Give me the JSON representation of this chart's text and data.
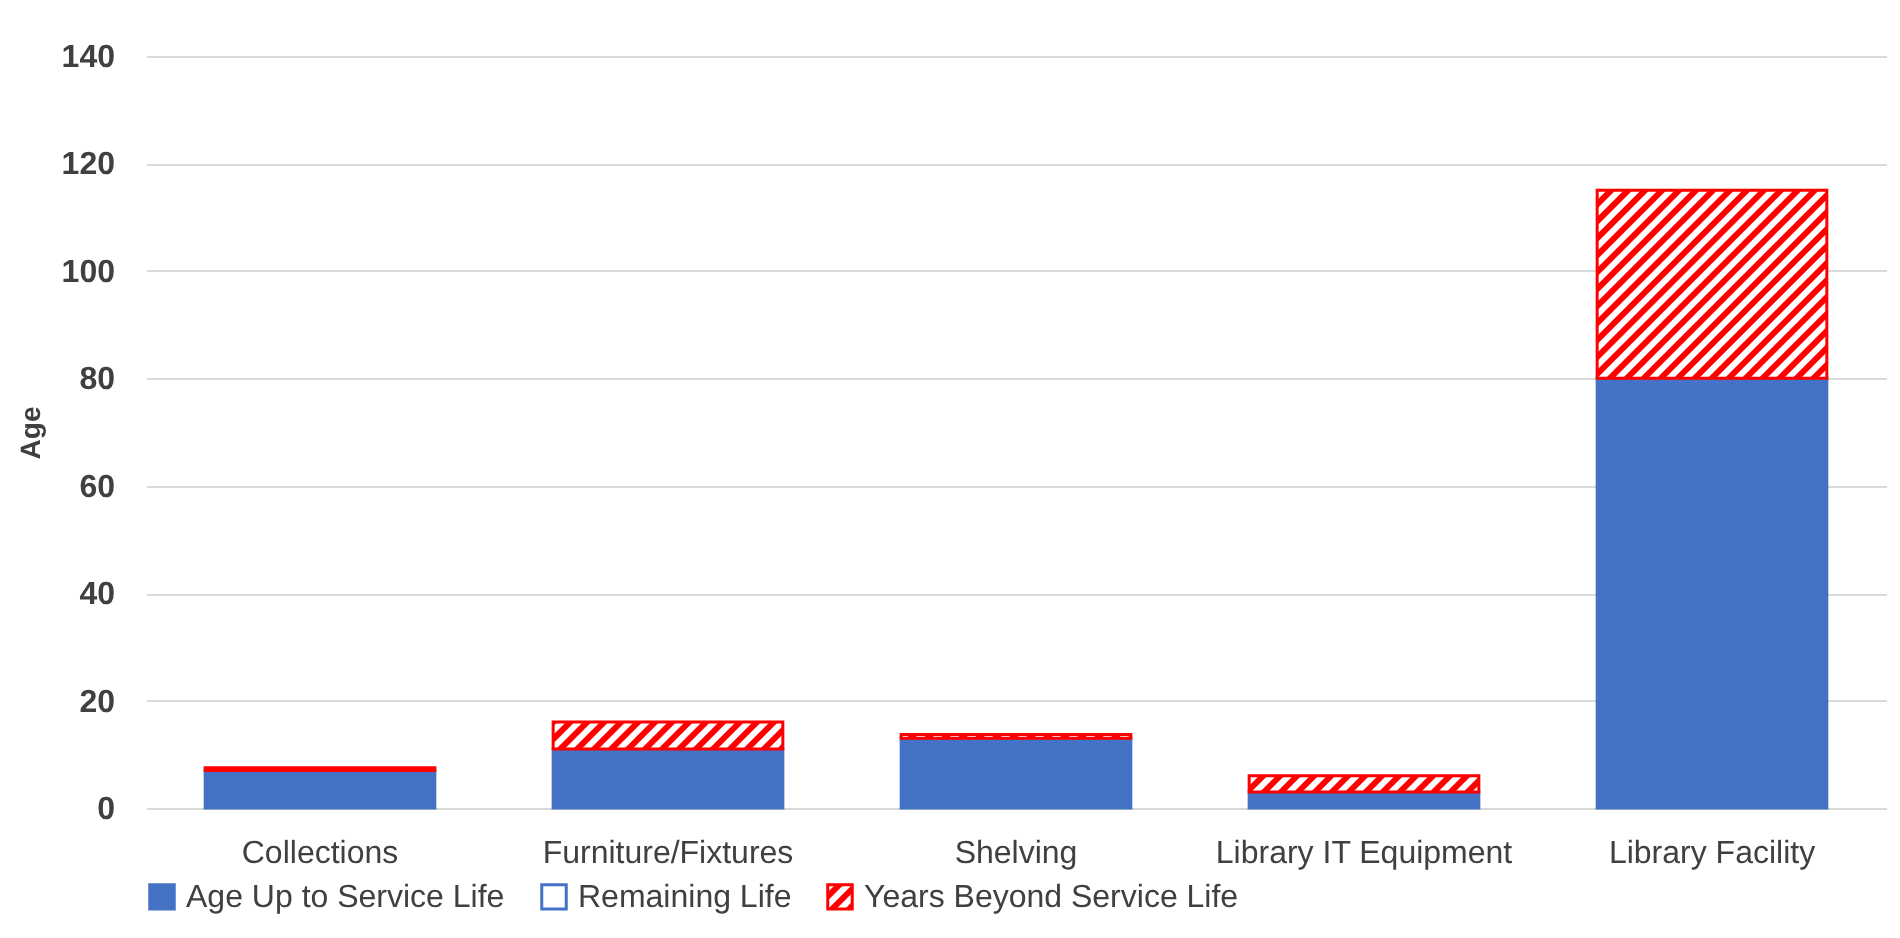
{
  "chart_data": {
    "type": "bar",
    "ylabel": "Age",
    "stacked": true,
    "categories": [
      "Collections",
      "Furniture/Fixtures",
      "Shelving",
      "Library IT Equipment",
      "Library Facility"
    ],
    "series": [
      {
        "name": "Age Up to Service Life",
        "color": "#4472c4",
        "values": [
          7,
          11,
          13,
          3,
          80
        ]
      },
      {
        "name": "Remaining Life",
        "color": "#4472c4",
        "values": [
          0,
          0,
          0,
          0,
          0
        ]
      },
      {
        "name": "Years Beyond Service Life",
        "color": "#ff0000",
        "values": [
          0.5,
          5,
          0.7,
          3,
          35
        ]
      }
    ],
    "ylim": [
      0,
      140
    ],
    "yticks": [
      0,
      20,
      40,
      60,
      80,
      100,
      120,
      140
    ],
    "grid": "y",
    "legend": "bottom"
  }
}
